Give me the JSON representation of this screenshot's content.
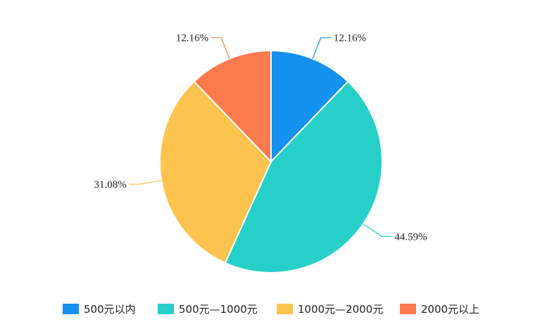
{
  "chart_data": {
    "type": "pie",
    "title": "",
    "categories": [
      "500元以内",
      "500元—1000元",
      "1000元—2000元",
      "2000元以上"
    ],
    "values": [
      12.16,
      44.59,
      31.08,
      12.16
    ],
    "labels": [
      "12.16%",
      "44.59%",
      "31.08%",
      "12.16%"
    ],
    "colors": [
      "#1591f0",
      "#26d0c9",
      "#fcc44f",
      "#fb7b4c"
    ],
    "start_angle_deg": 0,
    "direction": "clockwise",
    "legend_position": "bottom"
  }
}
